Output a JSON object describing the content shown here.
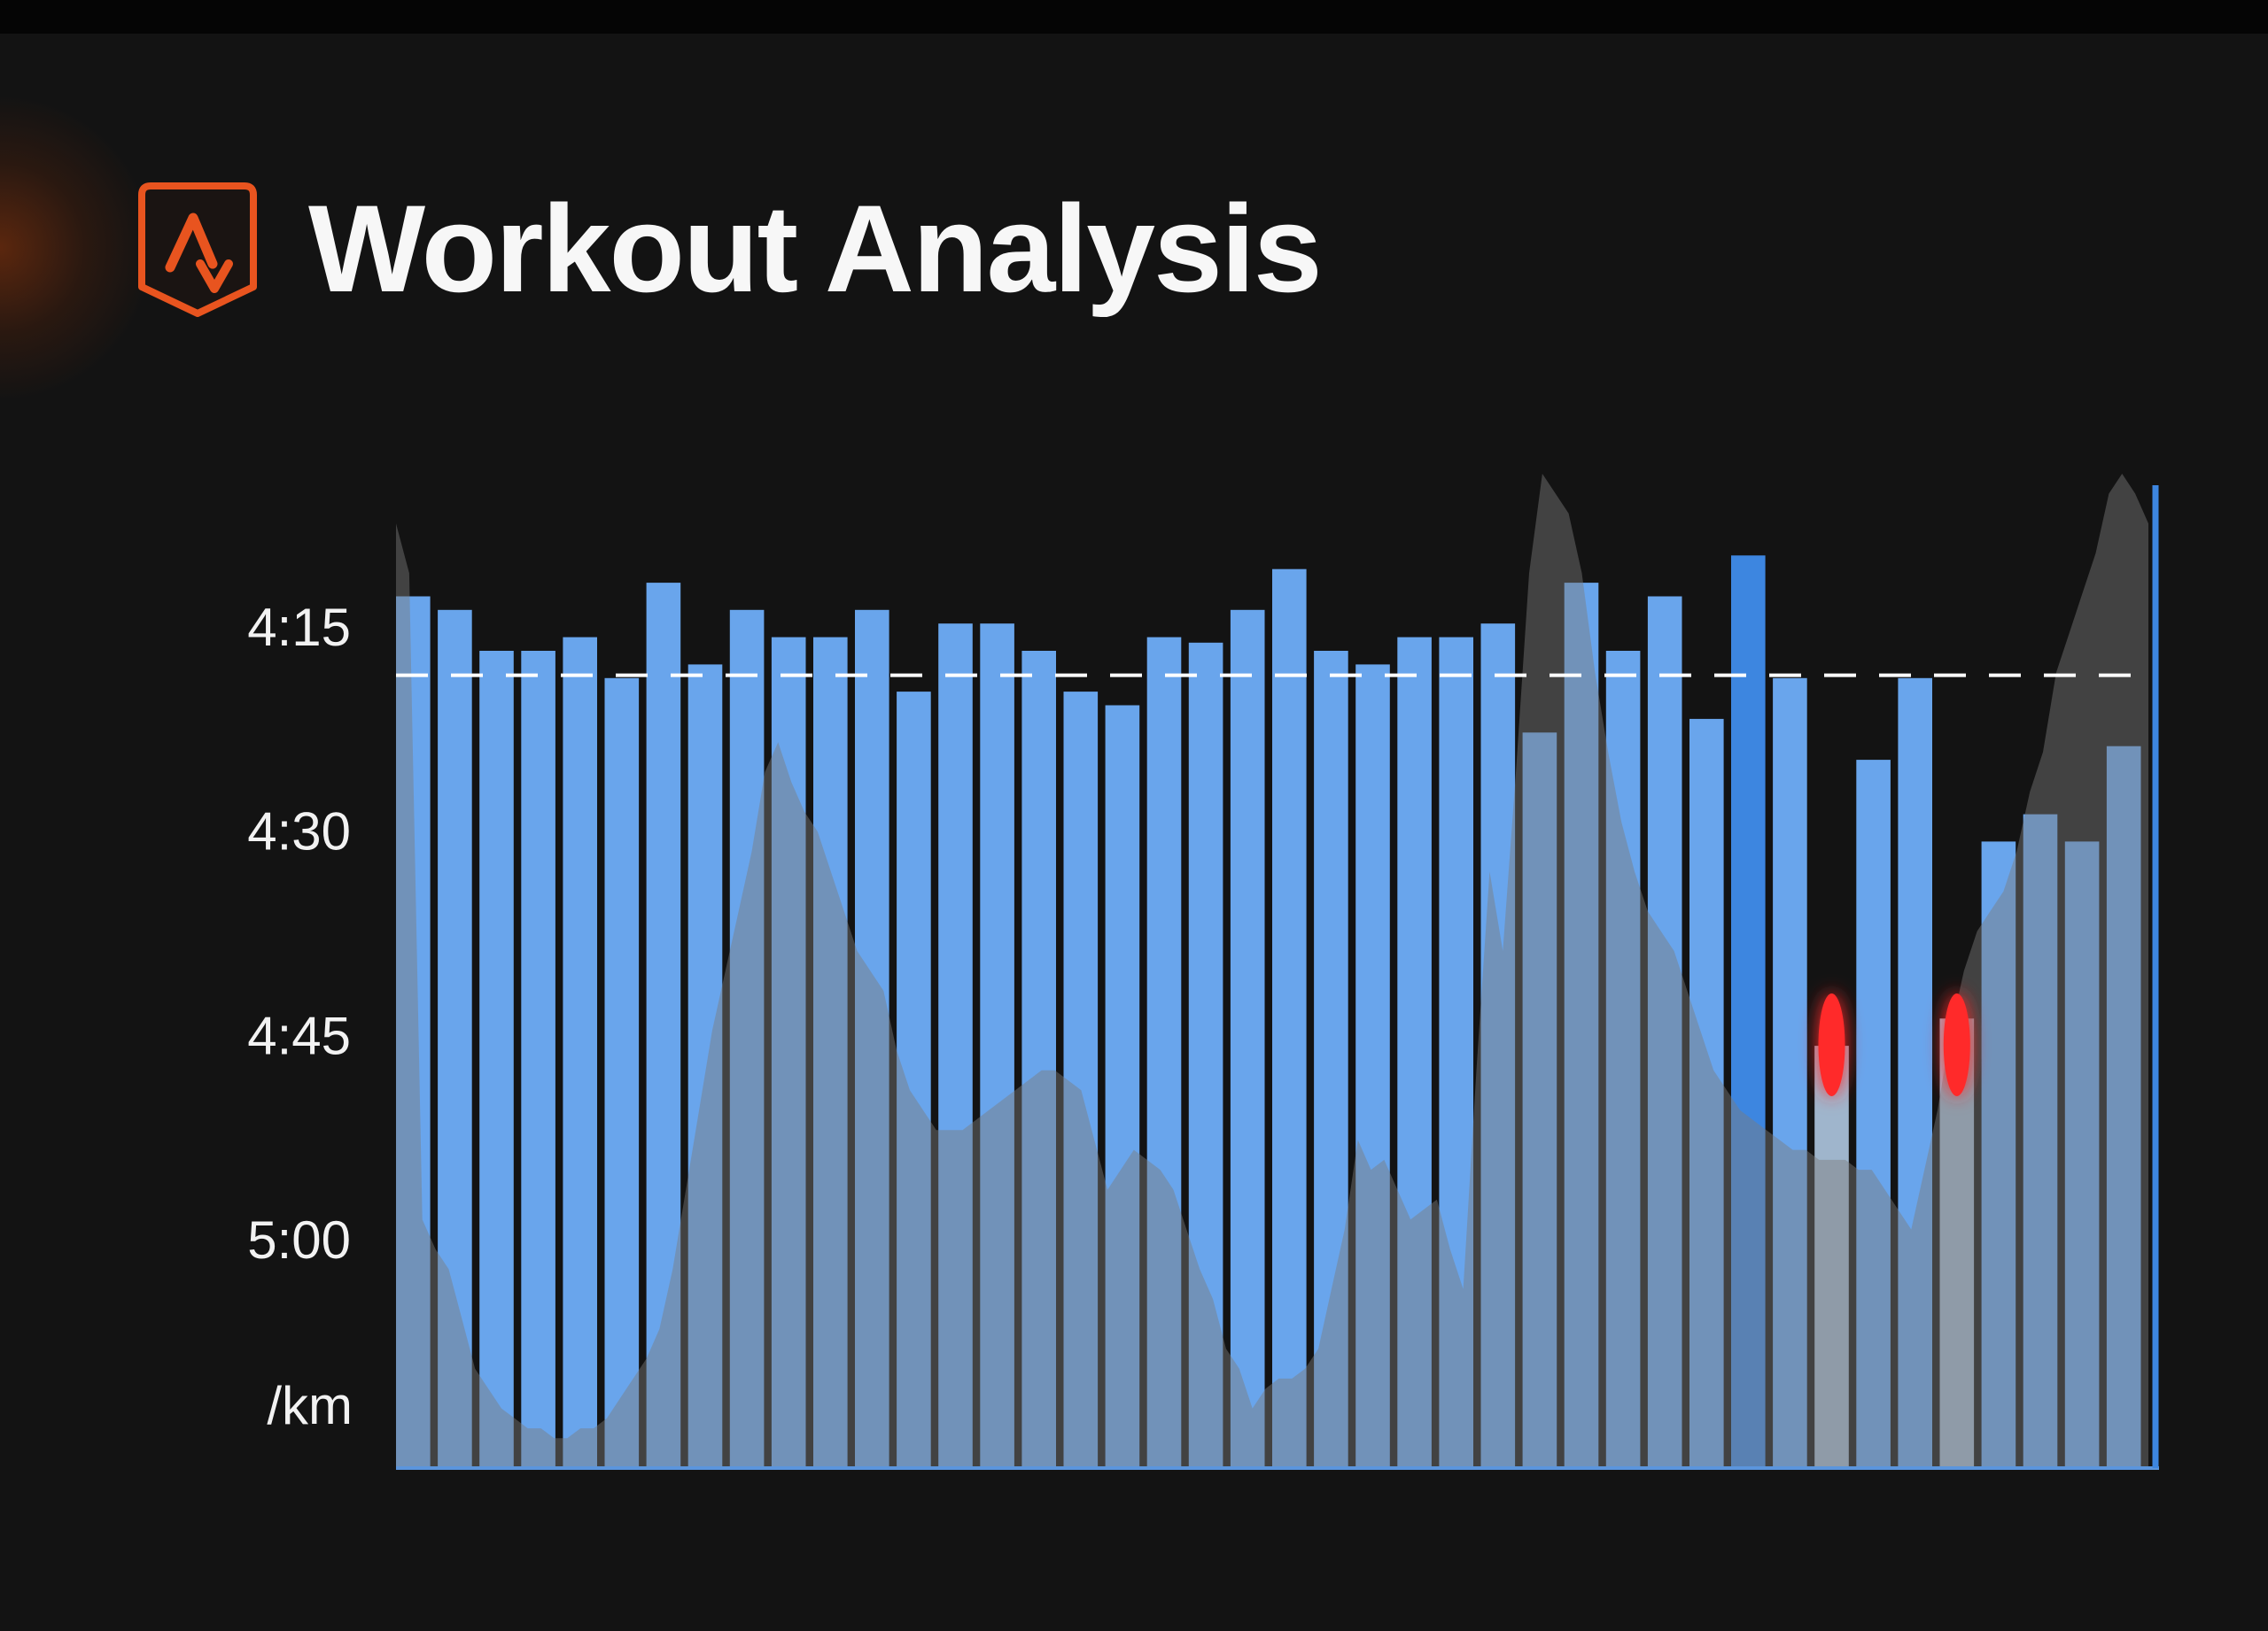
{
  "header": {
    "title": "Workout Analysis",
    "logo_icon": "strava-chevron-logo",
    "accent_color": "#e8541f"
  },
  "chart_data": {
    "type": "bar",
    "title": "Workout Analysis",
    "xlabel": "",
    "ylabel": "/km",
    "y_unit_label": "/km",
    "y_axis_inverted": true,
    "y_tick_labels": [
      "4:15",
      "4:30",
      "4:45",
      "5:00"
    ],
    "y_tick_values_sec": [
      255,
      270,
      285,
      300
    ],
    "ylim_sec": [
      242,
      315
    ],
    "grid": false,
    "target_line": {
      "value_sec": 256.8,
      "style": "dashed",
      "color": "#ffffff"
    },
    "bar_color": "#69a5ec",
    "highlight_bar_color": "#3d86e0",
    "flagged_bar_color": "#9fb5cc",
    "flag_color": "#ff2a2a",
    "elevation_color": "#7d7d7d",
    "values_sec": [
      251.0,
      252.0,
      255.0,
      255.0,
      254.0,
      257.0,
      250.0,
      256.0,
      252.0,
      254.0,
      254.0,
      252.0,
      258.0,
      253.0,
      253.0,
      255.0,
      258.0,
      259.0,
      254.0,
      254.4,
      252.0,
      249.0,
      255.0,
      256.0,
      254.0,
      254.0,
      253.0,
      261.0,
      250.0,
      255.0,
      251.0,
      260.0,
      248.0,
      257.0,
      284.0,
      263.0,
      257.0,
      282.0,
      269.0,
      267.0,
      269.0,
      262.0
    ],
    "highlighted_indices": [
      32
    ],
    "flagged_indices": [
      34,
      37
    ],
    "elevation_profile": [
      95,
      90,
      25,
      22,
      20,
      15,
      10,
      8,
      6,
      5,
      4,
      4,
      3,
      3,
      4,
      4,
      5,
      7,
      9,
      11,
      14,
      20,
      28,
      36,
      44,
      50,
      56,
      62,
      70,
      73,
      69,
      66,
      64,
      60,
      56,
      52,
      50,
      48,
      42,
      38,
      36,
      34,
      34,
      34,
      35,
      36,
      37,
      38,
      39,
      40,
      40,
      39,
      38,
      33,
      28,
      30,
      32,
      31,
      30,
      28,
      24,
      20,
      17,
      12,
      10,
      6,
      8,
      9,
      9,
      10,
      12,
      18,
      24,
      33,
      30,
      31,
      28,
      25,
      26,
      27,
      22,
      18,
      40,
      60,
      52,
      70,
      90,
      100,
      98,
      96,
      90,
      80,
      72,
      65,
      60,
      56,
      54,
      52,
      48,
      44,
      40,
      38,
      36,
      35,
      34,
      33,
      32,
      32,
      31,
      31,
      31,
      30,
      30,
      28,
      26,
      24,
      30,
      36,
      44,
      50,
      54,
      56,
      58,
      62,
      68,
      72,
      80,
      84,
      88,
      92,
      98,
      100,
      98,
      95
    ]
  }
}
